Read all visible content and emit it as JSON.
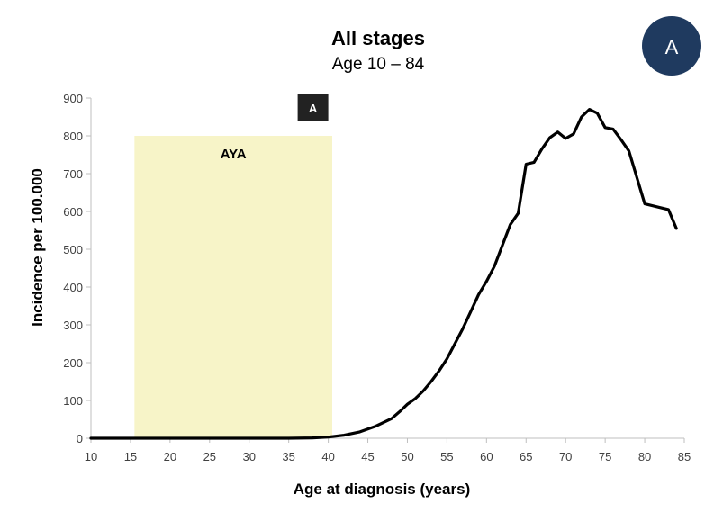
{
  "badge": {
    "label": "A",
    "color": "#1f3a5f"
  },
  "chart_data": {
    "type": "line",
    "title": "All stages",
    "subtitle": "Age 10 – 84",
    "xlabel": "Age at diagnosis (years)",
    "ylabel": "Incidence per 100.000",
    "xlim": [
      10,
      85
    ],
    "ylim": [
      0,
      900
    ],
    "xticks": [
      10,
      15,
      20,
      25,
      30,
      35,
      40,
      45,
      50,
      55,
      60,
      65,
      70,
      75,
      80,
      85
    ],
    "yticks": [
      0,
      100,
      200,
      300,
      400,
      500,
      600,
      700,
      800,
      900
    ],
    "grid": false,
    "line_color": "#000000",
    "shaded_region": {
      "label": "AYA",
      "x_range": [
        15.5,
        40.5
      ],
      "y_top": 800,
      "color": "#f7f4c8"
    },
    "marker": {
      "label": "A",
      "x": 40,
      "y": 900,
      "color": "#222222"
    },
    "series": [
      {
        "x": [
          10,
          15,
          20,
          25,
          30,
          35,
          38,
          40,
          42,
          44,
          46,
          48,
          49,
          50,
          51,
          52,
          53,
          54,
          55,
          56,
          57,
          58,
          59,
          60,
          61,
          62,
          63,
          64,
          65,
          66,
          67,
          68,
          69,
          70,
          71,
          72,
          73,
          74,
          75,
          76,
          77,
          78,
          79,
          80,
          81,
          82,
          83,
          84
        ],
        "y": [
          0,
          0,
          0,
          0,
          0,
          0,
          1,
          3,
          8,
          17,
          32,
          52,
          70,
          90,
          105,
          125,
          150,
          178,
          210,
          250,
          290,
          335,
          380,
          415,
          455,
          510,
          565,
          595,
          725,
          730,
          765,
          795,
          810,
          793,
          805,
          850,
          870,
          860,
          822,
          818,
          790,
          760,
          690,
          620,
          615,
          610,
          605,
          555
        ]
      }
    ]
  }
}
